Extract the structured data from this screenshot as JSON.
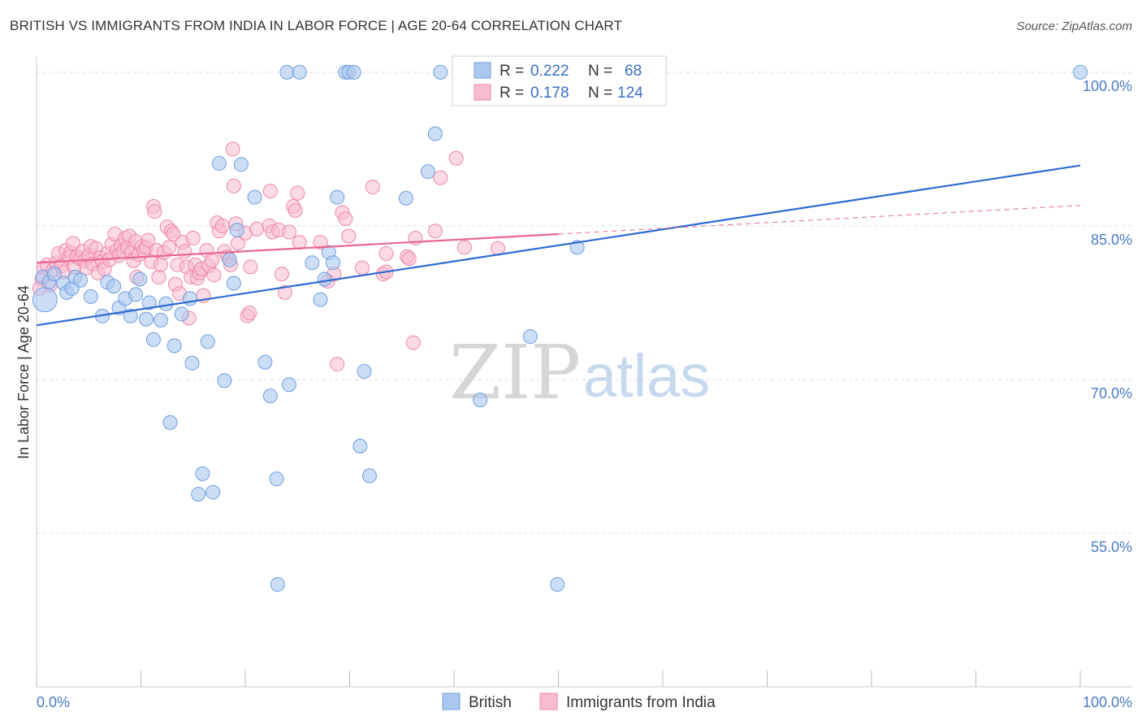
{
  "title": "BRITISH VS IMMIGRANTS FROM INDIA IN LABOR FORCE | AGE 20-64 CORRELATION CHART",
  "source": "Source: ZipAtlas.com",
  "watermark": {
    "zip": "ZIP",
    "atlas": "atlas"
  },
  "legend_box": {
    "rows": [
      {
        "r_label": "R =",
        "r_value": "0.222",
        "n_label": "N =",
        "n_value": "68"
      },
      {
        "r_label": "R =",
        "r_value": "0.178",
        "n_label": "N =",
        "n_value": "124"
      }
    ]
  },
  "colors": {
    "british_fill": "#aac8ee",
    "british_stroke": "#6f9ee0",
    "british_line": "#2d6bd1",
    "india_fill": "#f7bcd0",
    "india_stroke": "#ef86a9",
    "india_line": "#e8678f",
    "grid": "#dddddd",
    "tick_text": "#4a7bc8"
  },
  "chart_data": {
    "type": "scatter",
    "title": "BRITISH VS IMMIGRANTS FROM INDIA IN LABOR FORCE | AGE 20-64 CORRELATION CHART",
    "xlabel": "",
    "ylabel": "In Labor Force | Age 20-64",
    "xlim": [
      0,
      100
    ],
    "ylim": [
      40,
      101.5
    ],
    "x_tick_labels": [
      "0.0%",
      "100.0%"
    ],
    "y_ticks": [
      55,
      70,
      85,
      100
    ],
    "y_tick_labels": [
      "55.0%",
      "70.0%",
      "85.0%",
      "100.0%"
    ],
    "grid": true,
    "legend_position": "bottom",
    "series": [
      {
        "name": "British",
        "r": 0.222,
        "n": 68,
        "trend": {
          "x": [
            0,
            100
          ],
          "y": [
            75.3,
            90.9
          ]
        },
        "points": [
          [
            0.8,
            77.8
          ],
          [
            0.6,
            80.0
          ],
          [
            1.2,
            79.5
          ],
          [
            1.7,
            80.3
          ],
          [
            2.6,
            79.4
          ],
          [
            2.9,
            78.5
          ],
          [
            3.4,
            78.9
          ],
          [
            3.7,
            80.0
          ],
          [
            4.2,
            79.7
          ],
          [
            5.2,
            78.1
          ],
          [
            6.3,
            76.2
          ],
          [
            6.8,
            79.5
          ],
          [
            7.4,
            79.1
          ],
          [
            7.9,
            77.0
          ],
          [
            8.5,
            77.9
          ],
          [
            9.0,
            76.2
          ],
          [
            9.5,
            78.3
          ],
          [
            9.9,
            79.8
          ],
          [
            10.5,
            75.9
          ],
          [
            10.8,
            77.5
          ],
          [
            11.2,
            73.9
          ],
          [
            11.9,
            75.8
          ],
          [
            12.4,
            77.4
          ],
          [
            12.8,
            65.8
          ],
          [
            13.2,
            73.3
          ],
          [
            13.9,
            76.4
          ],
          [
            14.7,
            77.9
          ],
          [
            14.9,
            71.6
          ],
          [
            15.5,
            58.8
          ],
          [
            15.9,
            60.8
          ],
          [
            16.4,
            73.7
          ],
          [
            16.9,
            59.0
          ],
          [
            17.5,
            91.1
          ],
          [
            18.0,
            69.9
          ],
          [
            18.5,
            81.7
          ],
          [
            18.9,
            79.4
          ],
          [
            19.2,
            84.6
          ],
          [
            19.6,
            91.0
          ],
          [
            20.9,
            87.8
          ],
          [
            21.9,
            71.7
          ],
          [
            22.4,
            68.4
          ],
          [
            23.1,
            50.0
          ],
          [
            23.0,
            60.3
          ],
          [
            24.2,
            69.5
          ],
          [
            24.0,
            100.0
          ],
          [
            25.2,
            100.0
          ],
          [
            26.4,
            81.4
          ],
          [
            27.2,
            77.8
          ],
          [
            27.6,
            79.8
          ],
          [
            28.0,
            82.4
          ],
          [
            28.4,
            81.4
          ],
          [
            28.8,
            87.8
          ],
          [
            29.6,
            100.0
          ],
          [
            29.9,
            100.0
          ],
          [
            30.4,
            100.0
          ],
          [
            31.0,
            63.5
          ],
          [
            31.4,
            70.8
          ],
          [
            31.9,
            60.6
          ],
          [
            35.4,
            87.7
          ],
          [
            37.5,
            90.3
          ],
          [
            38.2,
            94.0
          ],
          [
            38.7,
            100.0
          ],
          [
            42.5,
            68.0
          ],
          [
            44.1,
            100.0
          ],
          [
            47.3,
            74.2
          ],
          [
            49.9,
            50.0
          ],
          [
            51.8,
            82.9
          ],
          [
            100.0,
            100.0
          ]
        ]
      },
      {
        "name": "Immigrants from India",
        "r": 0.178,
        "n": 124,
        "trend": {
          "x": [
            0,
            50
          ],
          "y": [
            81.4,
            84.2
          ]
        },
        "trend_extension": {
          "x": [
            50,
            100
          ],
          "y": [
            84.2,
            87.0
          ]
        },
        "points": [
          [
            0.5,
            79.8
          ],
          [
            0.7,
            80.9
          ],
          [
            1.0,
            81.2
          ],
          [
            1.3,
            79.2
          ],
          [
            1.6,
            80.7
          ],
          [
            1.9,
            81.4
          ],
          [
            2.1,
            82.3
          ],
          [
            2.4,
            81.1
          ],
          [
            2.6,
            80.5
          ],
          [
            2.8,
            82.6
          ],
          [
            3.1,
            81.9
          ],
          [
            3.3,
            82.4
          ],
          [
            3.5,
            83.3
          ],
          [
            3.6,
            81.0
          ],
          [
            3.9,
            82.0
          ],
          [
            4.2,
            81.8
          ],
          [
            4.4,
            82.5
          ],
          [
            4.6,
            81.6
          ],
          [
            4.8,
            80.9
          ],
          [
            5.0,
            82.1
          ],
          [
            5.2,
            83.0
          ],
          [
            5.4,
            81.3
          ],
          [
            5.7,
            82.8
          ],
          [
            5.9,
            80.4
          ],
          [
            6.1,
            81.9
          ],
          [
            6.3,
            81.5
          ],
          [
            6.5,
            80.8
          ],
          [
            6.8,
            82.3
          ],
          [
            7.0,
            81.7
          ],
          [
            7.2,
            83.2
          ],
          [
            7.5,
            84.2
          ],
          [
            7.7,
            82.6
          ],
          [
            7.9,
            82.1
          ],
          [
            8.1,
            83.1
          ],
          [
            8.3,
            82.5
          ],
          [
            8.5,
            83.8
          ],
          [
            8.7,
            82.9
          ],
          [
            8.9,
            84.0
          ],
          [
            9.1,
            82.4
          ],
          [
            9.3,
            81.6
          ],
          [
            9.5,
            83.5
          ],
          [
            9.6,
            80.0
          ],
          [
            9.8,
            82.2
          ],
          [
            10.1,
            83.0
          ],
          [
            10.3,
            82.6
          ],
          [
            10.5,
            82.9
          ],
          [
            10.7,
            83.6
          ],
          [
            11.0,
            81.5
          ],
          [
            11.2,
            86.9
          ],
          [
            11.3,
            86.4
          ],
          [
            11.5,
            82.6
          ],
          [
            11.7,
            80.0
          ],
          [
            11.9,
            81.2
          ],
          [
            12.2,
            82.4
          ],
          [
            12.5,
            84.9
          ],
          [
            12.7,
            82.9
          ],
          [
            12.9,
            84.5
          ],
          [
            13.1,
            84.2
          ],
          [
            13.3,
            79.3
          ],
          [
            13.5,
            81.2
          ],
          [
            13.7,
            78.4
          ],
          [
            14.0,
            83.4
          ],
          [
            14.2,
            82.5
          ],
          [
            14.4,
            81.0
          ],
          [
            14.6,
            76.0
          ],
          [
            14.8,
            80.0
          ],
          [
            15.0,
            83.8
          ],
          [
            15.2,
            81.2
          ],
          [
            15.4,
            79.9
          ],
          [
            15.6,
            80.4
          ],
          [
            15.8,
            80.8
          ],
          [
            16.0,
            78.2
          ],
          [
            16.3,
            82.6
          ],
          [
            16.5,
            81.1
          ],
          [
            16.8,
            81.6
          ],
          [
            17.0,
            80.2
          ],
          [
            17.3,
            85.3
          ],
          [
            17.5,
            84.5
          ],
          [
            17.8,
            85.0
          ],
          [
            18.0,
            82.5
          ],
          [
            18.3,
            82.0
          ],
          [
            18.6,
            81.2
          ],
          [
            18.9,
            88.9
          ],
          [
            18.8,
            92.5
          ],
          [
            19.1,
            85.2
          ],
          [
            19.3,
            83.3
          ],
          [
            20.0,
            84.3
          ],
          [
            20.2,
            76.2
          ],
          [
            20.4,
            76.5
          ],
          [
            20.5,
            81.0
          ],
          [
            21.1,
            84.7
          ],
          [
            22.3,
            85.0
          ],
          [
            22.4,
            88.4
          ],
          [
            22.6,
            84.4
          ],
          [
            23.2,
            84.6
          ],
          [
            23.5,
            80.3
          ],
          [
            23.8,
            78.5
          ],
          [
            24.2,
            84.4
          ],
          [
            24.6,
            86.9
          ],
          [
            24.8,
            86.5
          ],
          [
            25.0,
            88.2
          ],
          [
            25.2,
            83.4
          ],
          [
            27.2,
            83.4
          ],
          [
            27.9,
            79.6
          ],
          [
            28.5,
            80.3
          ],
          [
            28.8,
            71.5
          ],
          [
            29.3,
            86.3
          ],
          [
            29.6,
            85.7
          ],
          [
            29.9,
            84.0
          ],
          [
            31.2,
            80.9
          ],
          [
            32.2,
            88.8
          ],
          [
            33.2,
            80.3
          ],
          [
            33.5,
            80.5
          ],
          [
            33.5,
            82.3
          ],
          [
            35.5,
            82.0
          ],
          [
            35.7,
            81.8
          ],
          [
            36.1,
            73.6
          ],
          [
            36.3,
            83.8
          ],
          [
            38.2,
            84.5
          ],
          [
            38.7,
            89.7
          ],
          [
            40.2,
            91.6
          ],
          [
            41.0,
            82.9
          ],
          [
            44.2,
            82.8
          ],
          [
            0.3,
            78.9
          ]
        ]
      }
    ]
  },
  "bottom_legend": [
    {
      "label": "British"
    },
    {
      "label": "Immigrants from India"
    }
  ]
}
